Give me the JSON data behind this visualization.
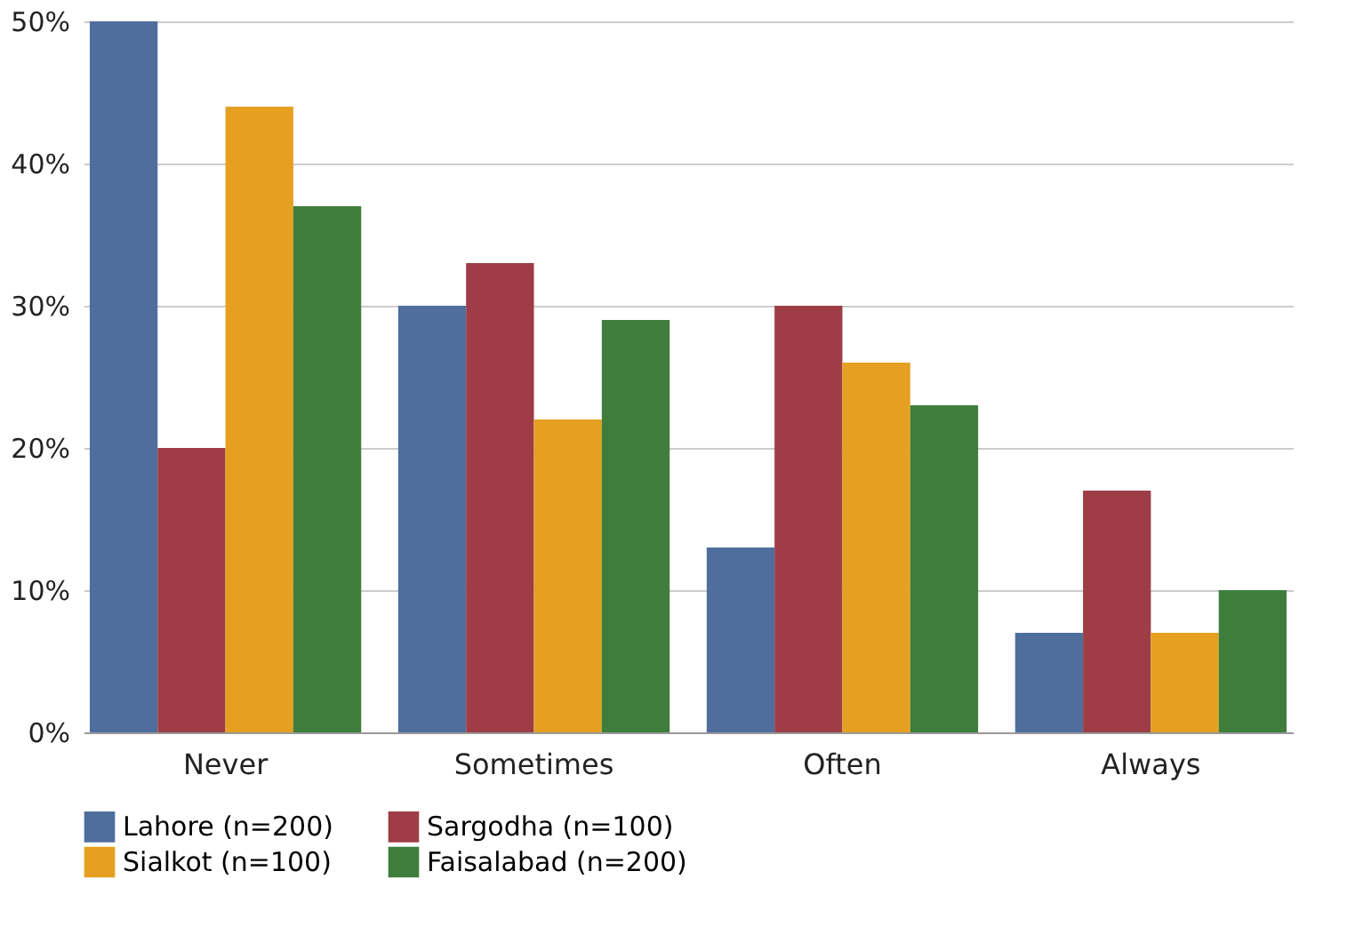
{
  "chart_data": {
    "type": "bar",
    "categories": [
      "Never",
      "Sometimes",
      "Often",
      "Always"
    ],
    "series": [
      {
        "name": "Lahore (n=200)",
        "color": "#4f6e9e",
        "values": [
          50,
          30,
          13,
          7
        ]
      },
      {
        "name": "Sargodha (n=100)",
        "color": "#9e3d46",
        "values": [
          20,
          33,
          30,
          17
        ]
      },
      {
        "name": "Sialkot (n=100)",
        "color": "#e5a022",
        "values": [
          44,
          22,
          26,
          7
        ]
      },
      {
        "name": "Faisalabad (n=200)",
        "color": "#3f7d3d",
        "values": [
          37,
          29,
          23,
          10
        ]
      }
    ],
    "ylim": [
      0,
      50
    ],
    "yticks": [
      {
        "value": 0,
        "label": "0%"
      },
      {
        "value": 10,
        "label": "10%"
      },
      {
        "value": 20,
        "label": "20%"
      },
      {
        "value": 30,
        "label": "30%"
      },
      {
        "value": 40,
        "label": "40%"
      },
      {
        "value": 50,
        "label": "50%"
      }
    ],
    "grid": "y",
    "legend": "bottom"
  }
}
